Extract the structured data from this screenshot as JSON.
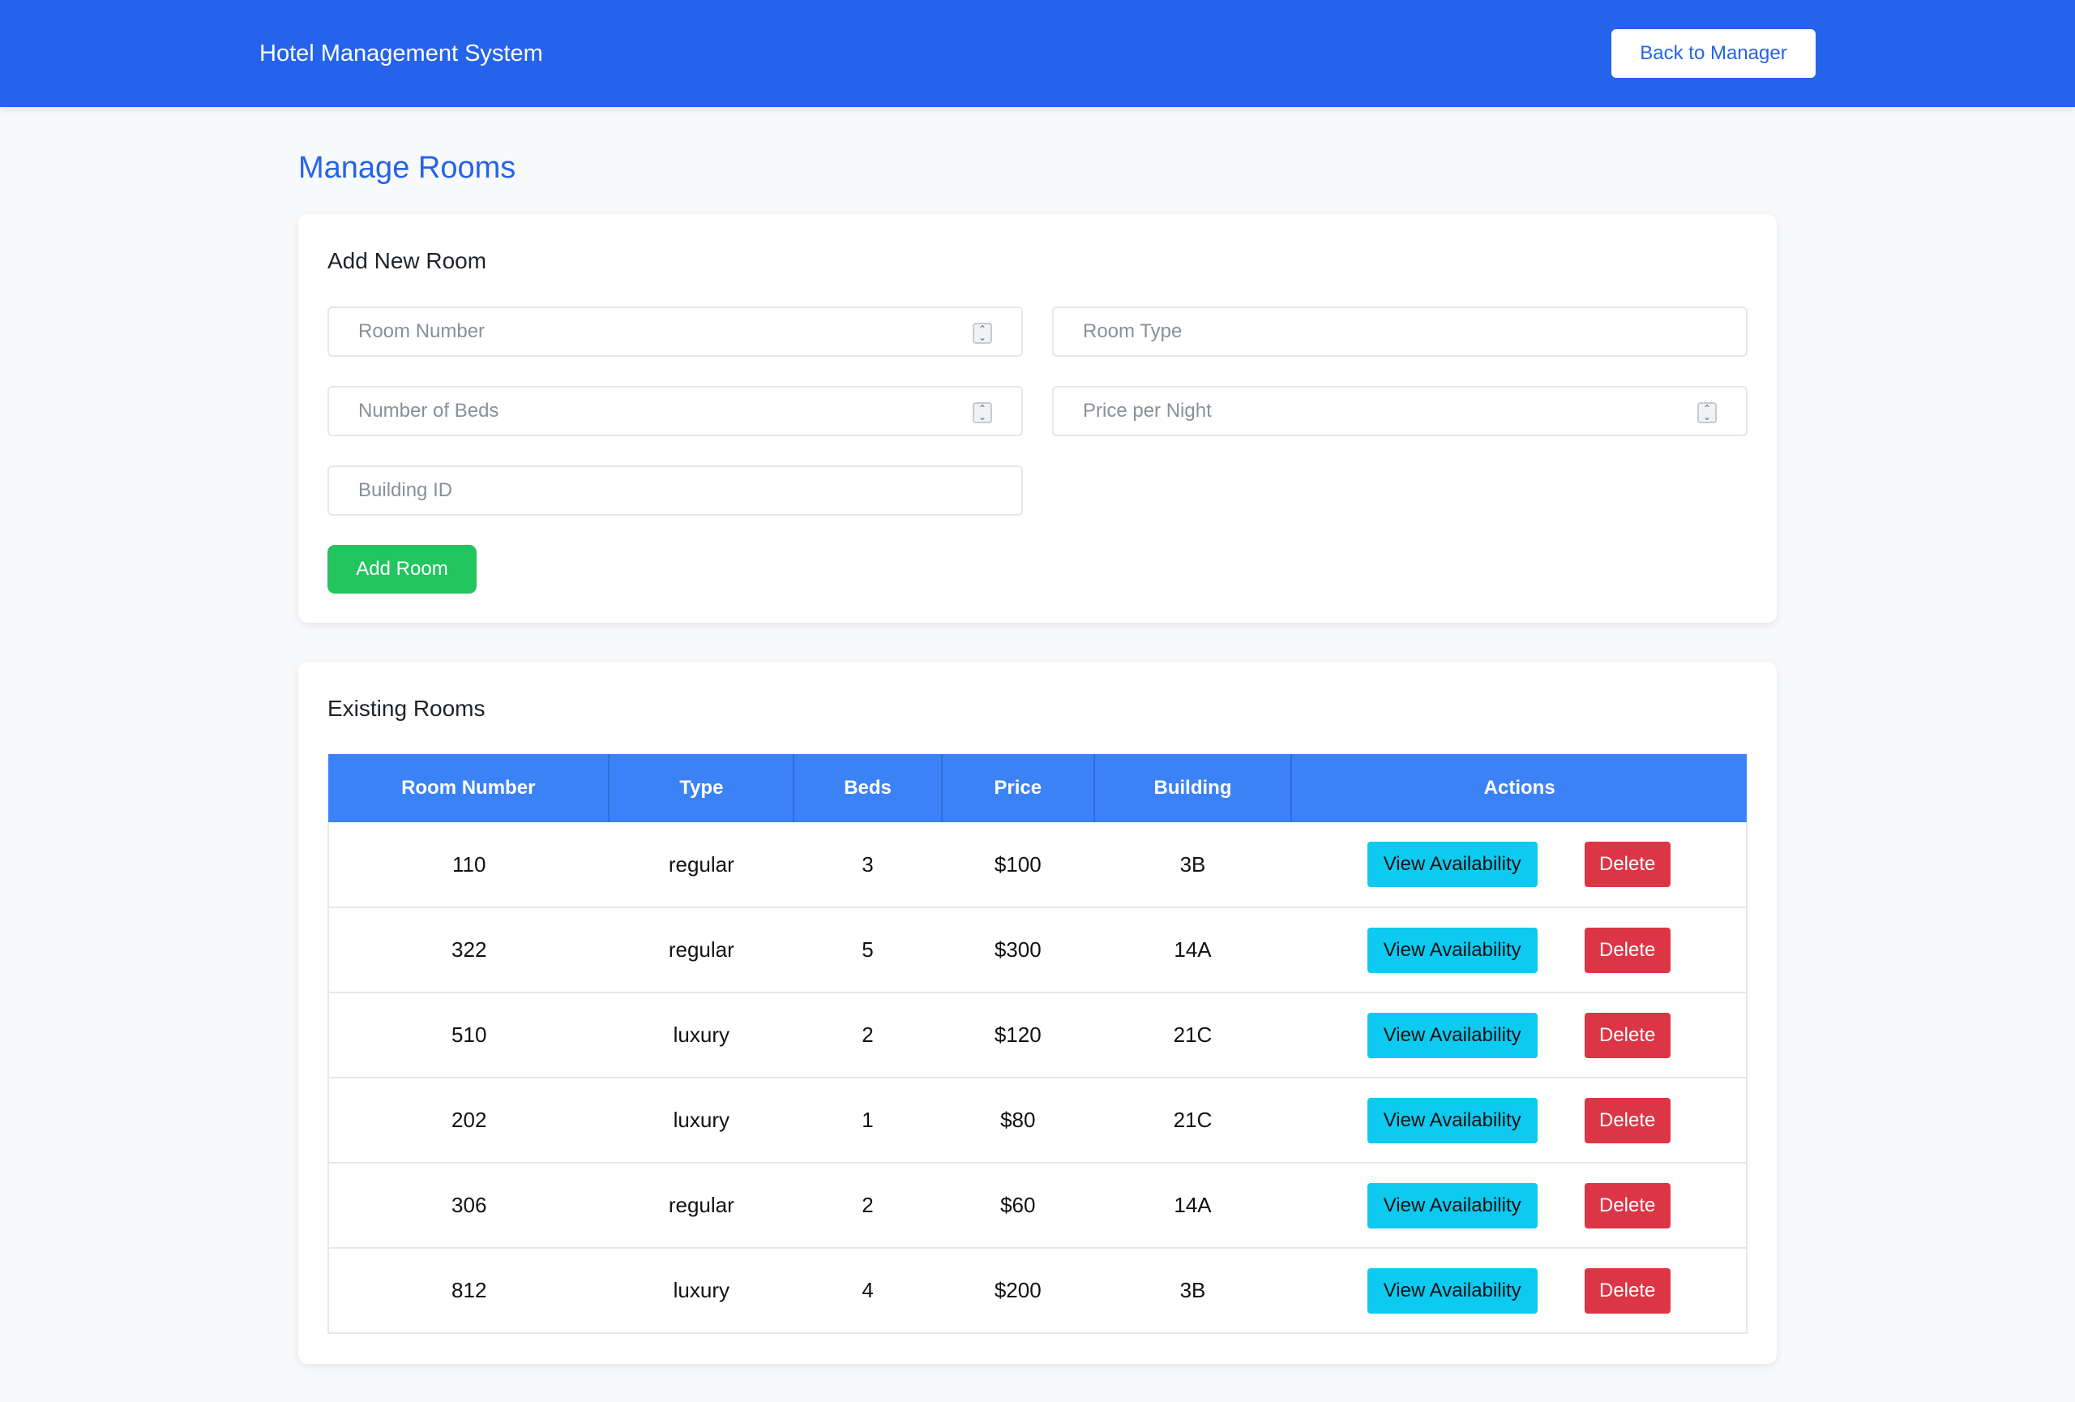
{
  "navbar": {
    "brand": "Hotel Management System",
    "back_label": "Back to Manager"
  },
  "page": {
    "title": "Manage Rooms"
  },
  "add_form": {
    "title": "Add New Room",
    "room_number_placeholder": "Room Number",
    "room_type_placeholder": "Room Type",
    "beds_placeholder": "Number of Beds",
    "price_placeholder": "Price per Night",
    "building_placeholder": "Building ID",
    "submit_label": "Add Room",
    "accent_color": "#22c55e"
  },
  "rooms_list": {
    "title": "Existing Rooms",
    "headers": {
      "room_number": "Room Number",
      "type": "Type",
      "beds": "Beds",
      "price": "Price",
      "building": "Building",
      "actions": "Actions"
    },
    "header_color": "#3b82f6",
    "view_label": "View Availability",
    "delete_label": "Delete",
    "rows": [
      {
        "room_number": "110",
        "type": "regular",
        "beds": "3",
        "price": "$100",
        "building": "3B"
      },
      {
        "room_number": "322",
        "type": "regular",
        "beds": "5",
        "price": "$300",
        "building": "14A"
      },
      {
        "room_number": "510",
        "type": "luxury",
        "beds": "2",
        "price": "$120",
        "building": "21C"
      },
      {
        "room_number": "202",
        "type": "luxury",
        "beds": "1",
        "price": "$80",
        "building": "21C"
      },
      {
        "room_number": "306",
        "type": "regular",
        "beds": "2",
        "price": "$60",
        "building": "14A"
      },
      {
        "room_number": "812",
        "type": "luxury",
        "beds": "4",
        "price": "$200",
        "building": "3B"
      }
    ]
  }
}
